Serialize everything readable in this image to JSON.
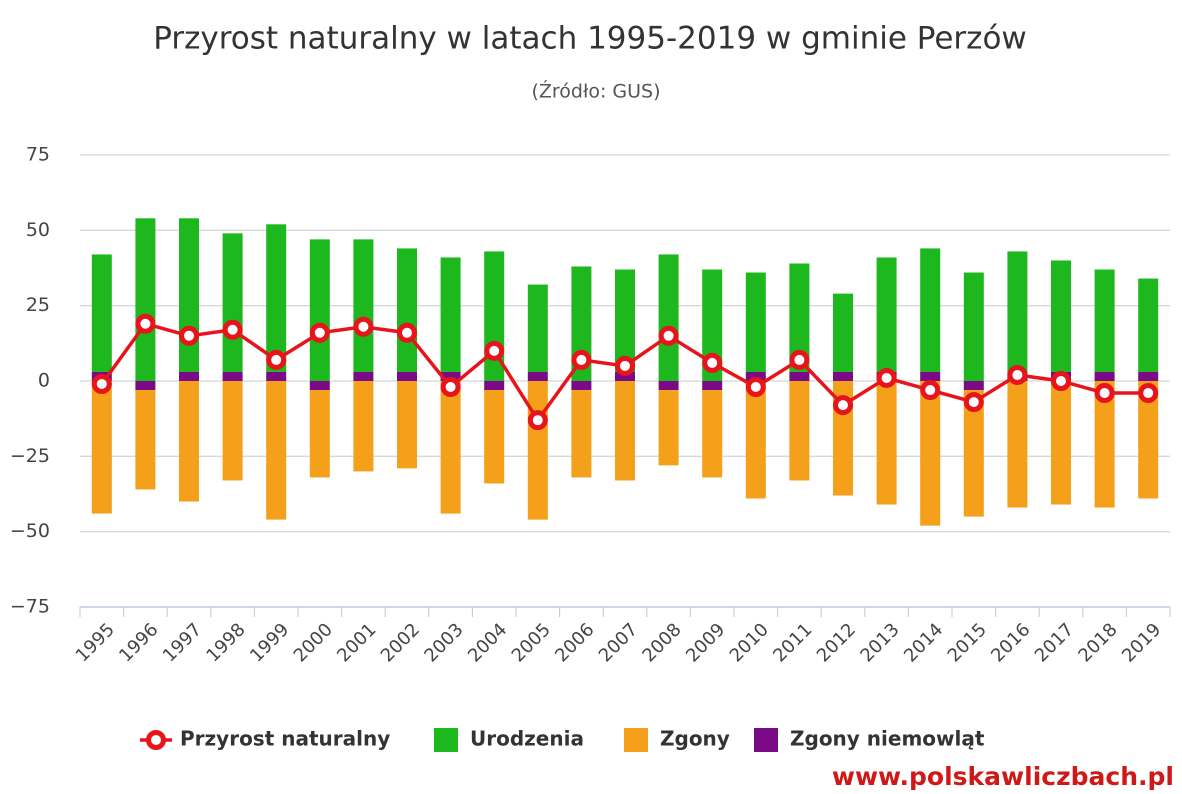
{
  "chart_data": {
    "type": "bar",
    "title": "Przyrost naturalny w latach 1995-2019 w gminie Perzów",
    "subtitle": "(Źródło: GUS)",
    "watermark": "www.polskawliczbach.pl",
    "categories": [
      "1995",
      "1996",
      "1997",
      "1998",
      "1999",
      "2000",
      "2001",
      "2002",
      "2003",
      "2004",
      "2005",
      "2006",
      "2007",
      "2008",
      "2009",
      "2010",
      "2011",
      "2012",
      "2013",
      "2014",
      "2015",
      "2016",
      "2017",
      "2018",
      "2019"
    ],
    "series": [
      {
        "name": "Przyrost naturalny",
        "type": "line",
        "color": "#e8141b",
        "values": [
          -1,
          19,
          15,
          17,
          7,
          16,
          18,
          16,
          -2,
          10,
          -13,
          7,
          5,
          15,
          6,
          -2,
          7,
          -8,
          1,
          -3,
          -7,
          2,
          0,
          -4,
          -4
        ]
      },
      {
        "name": "Urodzenia",
        "type": "bar",
        "color": "#1db81d",
        "values": [
          39,
          54,
          51,
          46,
          49,
          47,
          44,
          41,
          38,
          43,
          29,
          38,
          34,
          42,
          37,
          33,
          36,
          26,
          38,
          41,
          36,
          40,
          37,
          34,
          31
        ]
      },
      {
        "name": "Zgony",
        "type": "bar",
        "color": "#f5a01a",
        "values": [
          -44,
          -33,
          -40,
          -33,
          -46,
          -29,
          -30,
          -29,
          -44,
          -31,
          -46,
          -29,
          -33,
          -25,
          -29,
          -39,
          -33,
          -38,
          -41,
          -48,
          -42,
          -42,
          -41,
          -42,
          -39
        ]
      },
      {
        "name": "Zgony niemowląt",
        "type": "bar",
        "color": "#7b0a87",
        "values": [
          3,
          -3,
          3,
          3,
          3,
          -3,
          3,
          3,
          3,
          -3,
          3,
          -3,
          3,
          -3,
          -3,
          3,
          3,
          3,
          3,
          3,
          -3,
          3,
          3,
          3,
          3
        ]
      }
    ],
    "ylim": [
      -75,
      75
    ],
    "yticks": [
      {
        "value": -75,
        "label": "−75"
      },
      {
        "value": -50,
        "label": "−50"
      },
      {
        "value": -25,
        "label": "−25"
      },
      0,
      25,
      50,
      75
    ],
    "grid": true
  }
}
